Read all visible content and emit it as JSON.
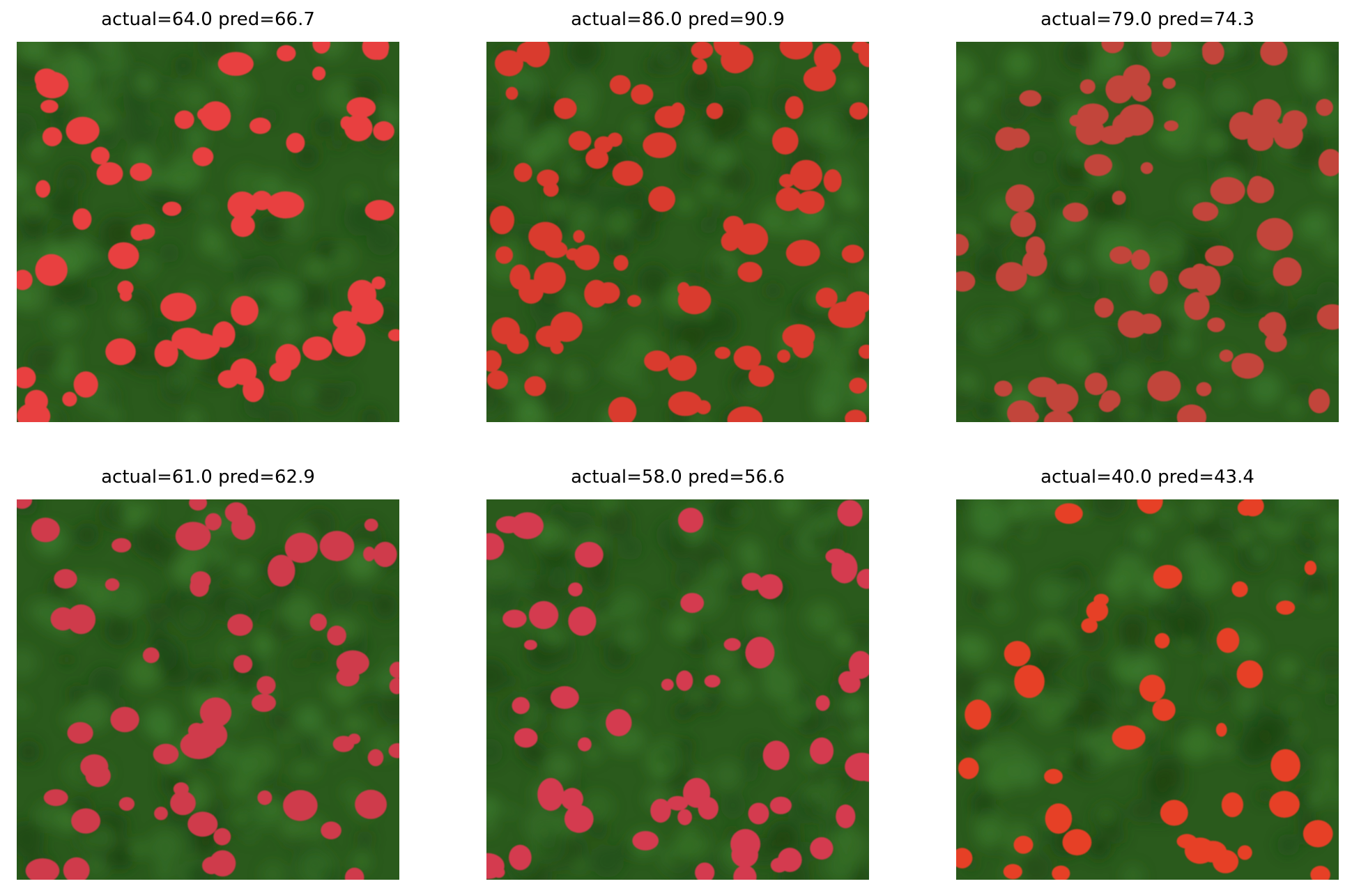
{
  "figure": {
    "panels": [
      {
        "title": "actual=64.0 pred=66.7",
        "actual": 64.0,
        "pred": 66.7,
        "blob_color": "#e8413f",
        "blob_count": 64,
        "seed": 11
      },
      {
        "title": "actual=86.0 pred=90.9",
        "actual": 86.0,
        "pred": 90.9,
        "blob_color": "#d93a2f",
        "blob_count": 86,
        "seed": 23
      },
      {
        "title": "actual=79.0 pred=74.3",
        "actual": 79.0,
        "pred": 74.3,
        "blob_color": "#c2443a",
        "blob_count": 79,
        "seed": 37
      },
      {
        "title": "actual=61.0 pred=62.9",
        "actual": 61.0,
        "pred": 62.9,
        "blob_color": "#cf3a4c",
        "blob_count": 61,
        "seed": 41
      },
      {
        "title": "actual=58.0 pred=56.6",
        "actual": 58.0,
        "pred": 56.6,
        "blob_color": "#d43a50",
        "blob_count": 58,
        "seed": 53
      },
      {
        "title": "actual=40.0 pred=43.4",
        "actual": 40.0,
        "pred": 43.4,
        "blob_color": "#e64126",
        "blob_count": 40,
        "seed": 67
      }
    ],
    "background_colors": {
      "base": "#2a5a1c",
      "dark": "#1d4413",
      "light": "#3c7a2c"
    }
  }
}
